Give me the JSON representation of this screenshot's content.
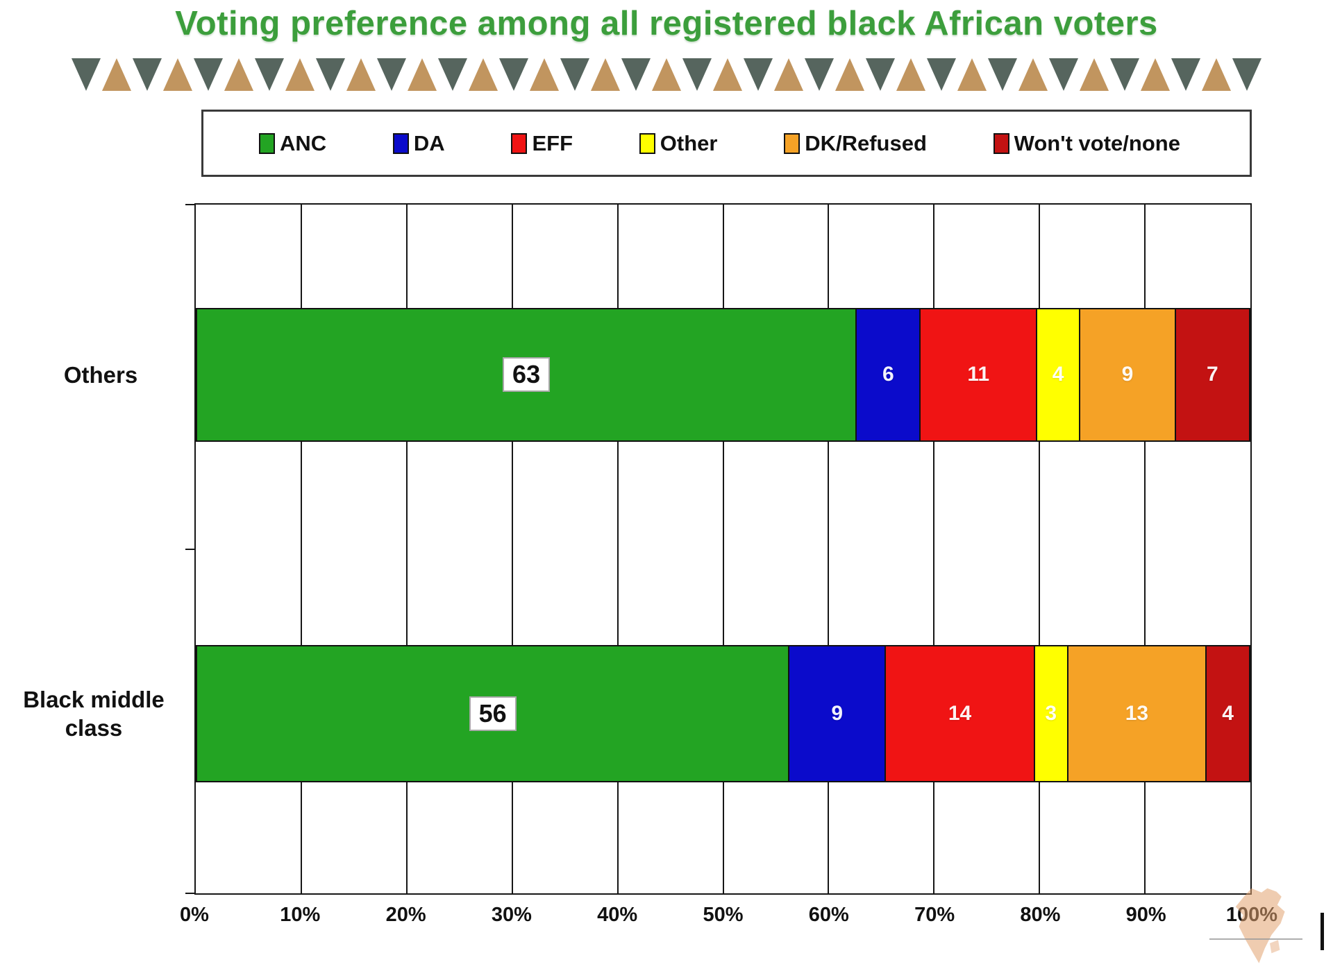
{
  "title": "Voting preference among all registered black African voters",
  "legend": {
    "items": [
      {
        "label": "ANC",
        "color": "#23A423"
      },
      {
        "label": "DA",
        "color": "#0B0BCB"
      },
      {
        "label": "EFF",
        "color": "#F01414"
      },
      {
        "label": "Other",
        "color": "#FFFF00"
      },
      {
        "label": "DK/Refused",
        "color": "#F5A226"
      },
      {
        "label": "Won't vote/none",
        "color": "#C31212"
      }
    ]
  },
  "chart_data": {
    "type": "bar",
    "orientation": "horizontal",
    "stacked": true,
    "title": "Voting preference among all registered black African voters",
    "categories": [
      "Others",
      "Black middle class"
    ],
    "series": [
      {
        "name": "ANC",
        "color": "#23A423",
        "values": [
          63,
          56
        ]
      },
      {
        "name": "DA",
        "color": "#0B0BCB",
        "values": [
          6,
          9
        ]
      },
      {
        "name": "EFF",
        "color": "#F01414",
        "values": [
          11,
          14
        ]
      },
      {
        "name": "Other",
        "color": "#FFFF00",
        "values": [
          4,
          3
        ]
      },
      {
        "name": "DK/Refused",
        "color": "#F5A226",
        "values": [
          9,
          13
        ]
      },
      {
        "name": "Won't vote/none",
        "color": "#C31212",
        "values": [
          7,
          4
        ]
      }
    ],
    "x_axis": {
      "min": 0,
      "max": 100,
      "ticks": [
        "0%",
        "10%",
        "20%",
        "30%",
        "40%",
        "50%",
        "60%",
        "70%",
        "80%",
        "90%",
        "100%"
      ]
    },
    "grid": "vertical",
    "legend_position": "top"
  },
  "decor": {
    "triangle_dark": "#56655E",
    "triangle_tan": "#C1955F",
    "triangle_count": 39
  }
}
